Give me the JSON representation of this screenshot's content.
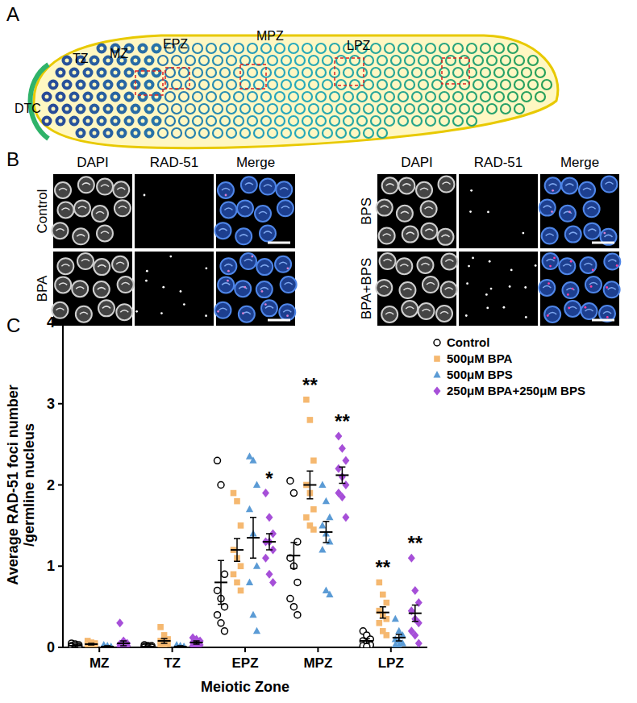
{
  "chart_data": {
    "type": "scatter",
    "y_label": "Average RAD-51 foci number\n/germline nucleus",
    "x_label": "Meiotic Zone",
    "categories": [
      "MZ",
      "TZ",
      "EPZ",
      "MPZ",
      "LPZ"
    ],
    "ylim": [
      0,
      4
    ],
    "yticks": [
      0,
      1,
      2,
      3,
      4
    ],
    "grid": false,
    "legend": "top-right",
    "series": [
      {
        "name": "Control",
        "color": "#000000",
        "marker": "open-circle",
        "values": [
          0.02,
          0.01,
          0.8,
          1.13,
          0.08
        ],
        "errors": [
          0.01,
          0.01,
          0.27,
          0.16,
          0.03
        ],
        "points": [
          [
            0.05,
            0.04,
            0.03,
            0.02,
            0.02,
            0.01,
            0.01,
            0.0,
            0.0
          ],
          [
            0.03,
            0.02,
            0.02,
            0.01,
            0.01,
            0.0,
            0.0,
            0.0,
            0.0
          ],
          [
            2.3,
            2.0,
            0.9,
            0.7,
            0.6,
            0.5,
            0.4,
            0.3,
            0.2
          ],
          [
            2.05,
            1.9,
            1.3,
            1.1,
            1.0,
            0.8,
            0.6,
            0.5,
            0.4
          ],
          [
            0.2,
            0.15,
            0.1,
            0.08,
            0.05,
            0.03,
            0.02,
            0.01
          ]
        ]
      },
      {
        "name": "500μM BPA",
        "color": "#f5b870",
        "marker": "square",
        "values": [
          0.04,
          0.08,
          1.2,
          2.0,
          0.43
        ],
        "errors": [
          0.01,
          0.03,
          0.14,
          0.17,
          0.07
        ],
        "points": [
          [
            0.08,
            0.06,
            0.05,
            0.04,
            0.03,
            0.02,
            0.02,
            0.01
          ],
          [
            0.25,
            0.15,
            0.1,
            0.08,
            0.05,
            0.04,
            0.02,
            0.01
          ],
          [
            1.9,
            1.8,
            1.5,
            1.2,
            1.1,
            1.0,
            0.9,
            0.8,
            0.7
          ],
          [
            3.05,
            2.8,
            2.3,
            2.0,
            1.9,
            1.7,
            1.6,
            1.5,
            1.45
          ],
          [
            0.8,
            0.65,
            0.55,
            0.45,
            0.4,
            0.35,
            0.3,
            0.2,
            0.15
          ]
        ]
      },
      {
        "name": "500μM BPS",
        "color": "#5b9bd5",
        "marker": "triangle",
        "values": [
          0.01,
          0.01,
          1.35,
          1.42,
          0.12
        ],
        "errors": [
          0.01,
          0.01,
          0.25,
          0.13,
          0.04
        ],
        "points": [
          [
            0.03,
            0.02,
            0.01,
            0.01,
            0.0,
            0.0,
            0.0,
            0.0
          ],
          [
            0.03,
            0.02,
            0.01,
            0.01,
            0.0,
            0.0,
            0.0,
            0.0
          ],
          [
            2.35,
            2.3,
            2.0,
            1.7,
            1.4,
            1.0,
            0.8,
            0.4,
            0.2
          ],
          [
            2.0,
            1.8,
            1.6,
            1.5,
            1.4,
            1.3,
            1.2,
            0.7,
            0.65
          ],
          [
            0.35,
            0.2,
            0.15,
            0.1,
            0.08,
            0.05,
            0.03,
            0.02
          ]
        ]
      },
      {
        "name": "250μM BPA+250μM BPS",
        "color": "#a64fd8",
        "marker": "diamond",
        "values": [
          0.05,
          0.06,
          1.3,
          2.12,
          0.42
        ],
        "errors": [
          0.03,
          0.02,
          0.1,
          0.1,
          0.1
        ],
        "points": [
          [
            0.3,
            0.08,
            0.05,
            0.04,
            0.03,
            0.02,
            0.01,
            0.0
          ],
          [
            0.12,
            0.1,
            0.08,
            0.06,
            0.05,
            0.03,
            0.02,
            0.01
          ],
          [
            1.9,
            1.6,
            1.4,
            1.3,
            1.3,
            1.2,
            1.1,
            0.9,
            0.8
          ],
          [
            2.6,
            2.45,
            2.3,
            2.2,
            2.1,
            2.0,
            1.9,
            1.85,
            1.6
          ],
          [
            1.1,
            0.7,
            0.55,
            0.45,
            0.35,
            0.3,
            0.2,
            0.15,
            0.05
          ]
        ]
      }
    ],
    "annotations": [
      {
        "text": "*",
        "series": 3,
        "category": 2
      },
      {
        "text": "**",
        "series": 1,
        "category": 3
      },
      {
        "text": "**",
        "series": 3,
        "category": 3
      },
      {
        "text": "**",
        "series": 1,
        "category": 4
      },
      {
        "text": "**",
        "series": 3,
        "category": 4
      }
    ]
  },
  "figure": {
    "panel_labels": [
      "A",
      "B",
      "C"
    ],
    "diagram": {
      "labels": [
        "DTC",
        "TZ",
        "MZ",
        "EPZ",
        "MPZ",
        "LPZ"
      ]
    },
    "micrographs": {
      "channels": [
        "DAPI",
        "RAD-51",
        "Merge"
      ],
      "conditions": [
        "Control",
        "BPA",
        "BPS",
        "BPA+BPS"
      ]
    }
  }
}
